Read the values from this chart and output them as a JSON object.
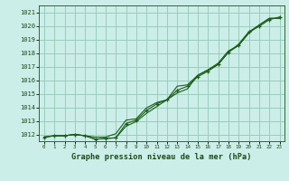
{
  "title": "Graphe pression niveau de la mer (hPa)",
  "background_color": "#cceee8",
  "grid_color": "#99ccbb",
  "line_color": "#1a5c1a",
  "marker_color": "#1a5c1a",
  "x_labels": [
    "0",
    "1",
    "2",
    "3",
    "4",
    "5",
    "6",
    "7",
    "8",
    "9",
    "10",
    "11",
    "12",
    "13",
    "14",
    "15",
    "16",
    "17",
    "18",
    "19",
    "20",
    "21",
    "22",
    "23"
  ],
  "xlim": [
    -0.5,
    23.5
  ],
  "ylim": [
    1011.5,
    1021.5
  ],
  "yticks": [
    1012,
    1013,
    1014,
    1015,
    1016,
    1017,
    1018,
    1019,
    1020,
    1021
  ],
  "series1": [
    1011.8,
    1011.9,
    1011.9,
    1012.0,
    1011.9,
    1011.8,
    1011.8,
    1012.05,
    1013.05,
    1013.15,
    1013.95,
    1014.35,
    1014.55,
    1015.55,
    1015.65,
    1016.35,
    1016.75,
    1017.15,
    1018.05,
    1018.65,
    1019.55,
    1020.05,
    1020.55,
    1020.55
  ],
  "series2": [
    1011.8,
    1011.9,
    1011.9,
    1012.0,
    1011.9,
    1011.65,
    1011.7,
    1011.75,
    1012.6,
    1012.95,
    1013.55,
    1014.05,
    1014.55,
    1015.05,
    1015.35,
    1016.35,
    1016.75,
    1017.25,
    1018.15,
    1018.55,
    1019.45,
    1020.05,
    1020.55,
    1020.55
  ],
  "series3": [
    1011.8,
    1011.9,
    1011.9,
    1012.0,
    1011.9,
    1011.65,
    1011.7,
    1011.75,
    1012.8,
    1013.05,
    1013.75,
    1014.25,
    1014.55,
    1015.25,
    1015.55,
    1016.25,
    1016.65,
    1017.15,
    1018.05,
    1018.55,
    1019.55,
    1019.95,
    1020.45,
    1020.65
  ]
}
